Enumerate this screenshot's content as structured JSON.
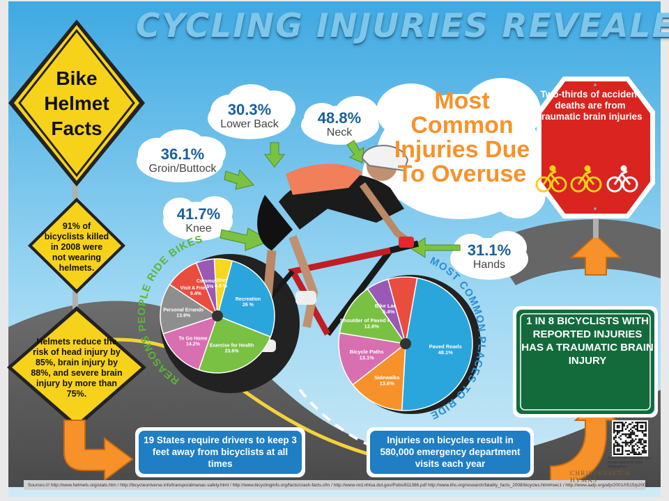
{
  "title": "CYCLING INJURIES REVEALED",
  "helmet_sign": {
    "title": "Bike Helmet Facts"
  },
  "fact_91": "91% of bicyclists killed in 2008 were not wearing helmets.",
  "fact_helmets": "Helmets reduce the risk of head injury by 85%, brain injury by 88%, and severe brain injury by more than 75%.",
  "overuse_title": "Most Common Injuries Due To Overuse",
  "injuries": [
    {
      "pct": "30.3%",
      "label": "Lower Back"
    },
    {
      "pct": "48.8%",
      "label": "Neck"
    },
    {
      "pct": "36.1%",
      "label": "Groin/Buttock"
    },
    {
      "pct": "41.7%",
      "label": "Knee"
    },
    {
      "pct": "31.1%",
      "label": "Hands"
    }
  ],
  "stop_sign": {
    "text": "Two-thirds of accident deaths are from traumatic brain injuries"
  },
  "green_sign": {
    "text": "1 IN 8 BICYCLISTS WITH REPORTED INJURIES HAS A TRAUMATIC BRAIN INJURY"
  },
  "blue_left": "19 States require drivers to keep 3 feet away from bicyclists at all times",
  "blue_right": "Injuries on bicycles result in 580,000 emergency department visits each year",
  "reasons_arc_label": "REASONS PEOPLE RIDE BIKES",
  "places_arc_label": "MOST COMMON PLACES TO RIDE",
  "reasons_wheel": [
    {
      "label": "Recreation",
      "value": "26 %",
      "pct": 26,
      "color": "#2aa6dc"
    },
    {
      "label": "Exercise for Health",
      "value": "23.6%",
      "pct": 23.6,
      "color": "#79c142"
    },
    {
      "label": "To Go Home",
      "value": "14.2%",
      "pct": 14.2,
      "color": "#d86fb0"
    },
    {
      "label": "Personal Errands",
      "value": "13.9%",
      "pct": 13.9,
      "color": "#8e8e8e"
    },
    {
      "label": "Visit A Friend",
      "value": "9.4%",
      "pct": 9.4,
      "color": "#e94d3d"
    },
    {
      "label": "Commuting",
      "value": "5%",
      "pct": 5,
      "color": "#9a59b5"
    },
    {
      "label": "Other",
      "value": "4.9 %",
      "pct": 4.9,
      "color": "#f6d81c"
    }
  ],
  "places_wheel": [
    {
      "label": "Paved Roads",
      "value": "48.1%",
      "pct": 48.1,
      "color": "#2aa6dc"
    },
    {
      "label": "Sidewalks",
      "value": "13.6%",
      "pct": 13.6,
      "color": "#f7922a"
    },
    {
      "label": "Bicycle Paths",
      "value": "13.1%",
      "pct": 13.1,
      "color": "#d86fb0"
    },
    {
      "label": "Shoulder of Paved Roads",
      "value": "12.8%",
      "pct": 12.8,
      "color": "#79c142"
    },
    {
      "label": "Bike Lanes",
      "value": "5.4%",
      "pct": 5.4,
      "color": "#9a59b5"
    },
    {
      "label": "",
      "value": "",
      "pct": 7.0,
      "color": "#e94d3d"
    }
  ],
  "footer": "Sources:/// http://www.helmets.org/stats.htm  /  http://bicycleuniverse.info/transpo/almanac-safety.html  /  http://www.bicyclinginfo.org/facts/crash-facts.cfm  /  http://www-nrd.nhtsa.dot.gov/Pubs/811386.pdf  http://www.iihs.org/research/fatality_facts_2008/bicycles.html#sec1  /  http://www.aafp.org/afp/2001/0515/p2007.html",
  "brand": "CHRISTENSEN & HYMAS",
  "qr_note": "Scan the QR code with your mobile device for more infographics.",
  "colors": {
    "sky": "#52b8e8",
    "sign_yellow": "#f7d21a",
    "stop_red": "#d9241f",
    "highway_green": "#136b3c",
    "info_blue": "#1f7ec4",
    "arrow_orange": "#f7922a",
    "arrow_green": "#7cc242"
  }
}
